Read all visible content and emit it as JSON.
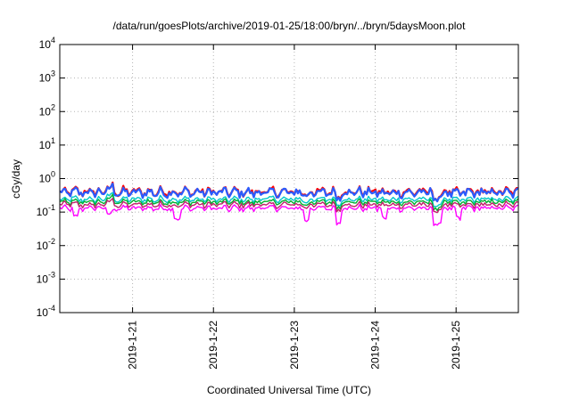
{
  "chart_data": {
    "type": "line",
    "title": "/data/run/goesPlots/archive/2019-01-25/18:00/bryn/../bryn/5daysMoon.plot",
    "xlabel": "Coordinated Universal Time (UTC)",
    "ylabel": "cGy/day",
    "yscale": "log",
    "ylim": [
      0.0001,
      10000
    ],
    "xlim": [
      20.1,
      25.77
    ],
    "grid": true,
    "y_ticks": [
      {
        "exp": "-4",
        "value": 0.0001
      },
      {
        "exp": "-3",
        "value": 0.001
      },
      {
        "exp": "-2",
        "value": 0.01
      },
      {
        "exp": "-1",
        "value": 0.1
      },
      {
        "exp": "0",
        "value": 1
      },
      {
        "exp": "1",
        "value": 10
      },
      {
        "exp": "2",
        "value": 100
      },
      {
        "exp": "3",
        "value": 1000
      },
      {
        "exp": "4",
        "value": 10000
      }
    ],
    "y_tick_base": "10",
    "x_ticks": [
      {
        "label": "2019-1-21",
        "day": 21
      },
      {
        "label": "2019-1-22",
        "day": 22
      },
      {
        "label": "2019-1-23",
        "day": 23
      },
      {
        "label": "2019-1-24",
        "day": 24
      },
      {
        "label": "2019-1-25",
        "day": 25
      }
    ],
    "series": [
      {
        "color": "#ff0000",
        "level": 0.4
      },
      {
        "color": "#2a5cff",
        "level": 0.38
      },
      {
        "color": "#00c8c8",
        "level": 0.24
      },
      {
        "color": "#00b030",
        "level": 0.2
      },
      {
        "color": "#c0206a",
        "level": 0.165
      },
      {
        "color": "#ff00ff",
        "level": 0.13
      }
    ],
    "dips": [
      {
        "day": 20.3,
        "value": 0.07
      },
      {
        "day": 20.72,
        "value": 0.09
      },
      {
        "day": 21.55,
        "value": 0.065
      },
      {
        "day": 23.15,
        "value": 0.055
      },
      {
        "day": 23.55,
        "value": 0.05
      },
      {
        "day": 24.12,
        "value": 0.065
      },
      {
        "day": 24.75,
        "value": 0.045
      },
      {
        "day": 24.78,
        "value": 0.045
      },
      {
        "day": 25.02,
        "value": 0.06
      }
    ]
  }
}
